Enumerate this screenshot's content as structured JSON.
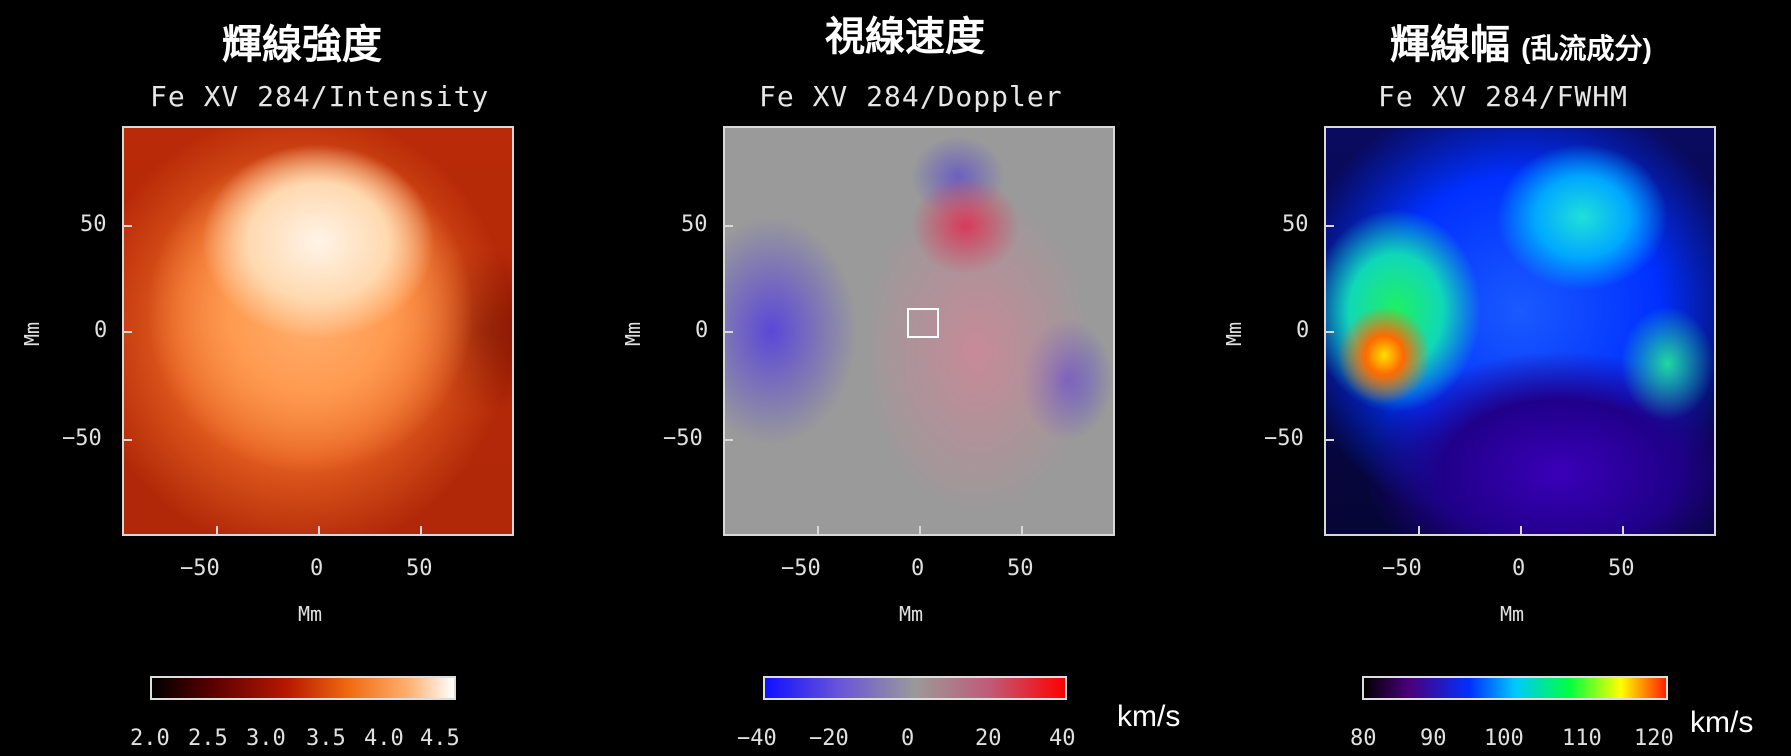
{
  "panels": [
    {
      "title": "輝線強度",
      "title_suffix": "",
      "subtitle": "Fe XV 284/Intensity",
      "xlabel": "Mm",
      "ylabel": "Mm",
      "xticks": [
        "−50",
        "0",
        "50"
      ],
      "yticks": [
        "50",
        "0",
        "−50"
      ],
      "colorbar_ticks": [
        "2.0",
        "2.5",
        "3.0",
        "3.5",
        "4.0",
        "4.5"
      ],
      "unit": "",
      "colormap": [
        "#000000",
        "#5a0000",
        "#b81800",
        "#f06a10",
        "#ffb070",
        "#ffffff"
      ]
    },
    {
      "title": "視線速度",
      "title_suffix": "",
      "subtitle": "Fe XV 284/Doppler",
      "xlabel": "Mm",
      "ylabel": "Mm",
      "xticks": [
        "−50",
        "0",
        "50"
      ],
      "yticks": [
        "50",
        "0",
        "−50"
      ],
      "colorbar_ticks": [
        "−40",
        "−20",
        "0",
        "20",
        "40"
      ],
      "unit": "km/s",
      "colormap": [
        "#1010ff",
        "#6a55d8",
        "#9a9a9a",
        "#c05a78",
        "#ff0000"
      ]
    },
    {
      "title": "輝線幅",
      "title_suffix": "(乱流成分)",
      "subtitle": "Fe XV 284/FWHM",
      "xlabel": "Mm",
      "ylabel": "Mm",
      "xticks": [
        "−50",
        "0",
        "50"
      ],
      "yticks": [
        "50",
        "0",
        "−50"
      ],
      "colorbar_ticks": [
        "80",
        "90",
        "100",
        "110",
        "120"
      ],
      "unit": "km/s",
      "colormap": [
        "#000000",
        "#4a007a",
        "#0030ff",
        "#00c8ff",
        "#00ff40",
        "#ffff00",
        "#ff2000"
      ]
    }
  ]
}
